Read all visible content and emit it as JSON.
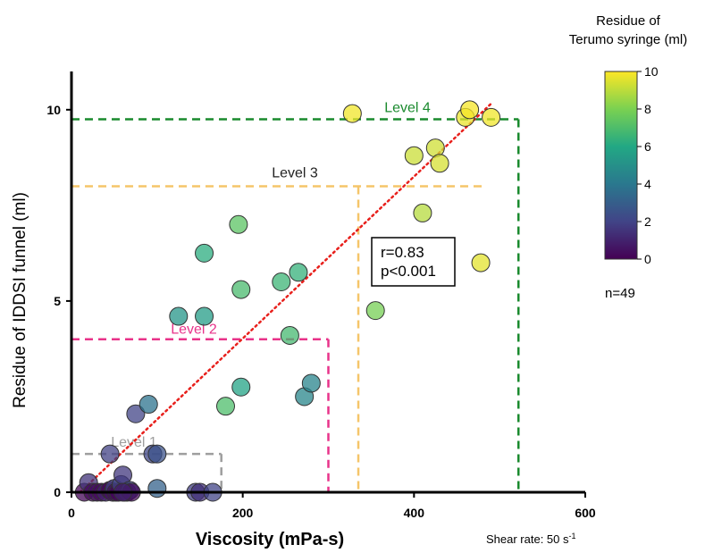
{
  "chart_data": {
    "type": "scatter",
    "xlabel": "Viscosity (mPa-s)",
    "ylabel": "Residue of IDDSI funnel (ml)",
    "xlim": [
      0,
      600
    ],
    "ylim": [
      0,
      11
    ],
    "xticks": [
      0,
      200,
      400,
      600
    ],
    "yticks": [
      0,
      5,
      10
    ],
    "shear_rate_note": "Shear rate: 50 s",
    "shear_rate_exp": "-1",
    "stats": {
      "r": "r=0.83",
      "p": "p<0.001"
    },
    "n_label": "n=49",
    "colorbar": {
      "title_line1": "Residue of",
      "title_line2": "Terumo syringe (ml)",
      "min": 0,
      "max": 10,
      "ticks": [
        0,
        2,
        4,
        6,
        8,
        10
      ]
    },
    "levels": [
      {
        "name": "Level 1",
        "x_max": 175,
        "y_max": 1,
        "color": "#9e9e9e"
      },
      {
        "name": "Level 2",
        "x_max": 300,
        "y_max": 4,
        "color": "#e8338a"
      },
      {
        "name": "Level 3",
        "x_max": 335,
        "y_max": 8,
        "color": "#f5c56a"
      },
      {
        "name": "Level 4",
        "x_max": 522,
        "y_max": 9.75,
        "color": "#1a8a2e"
      }
    ],
    "regression": {
      "x0": 10,
      "y0": 0,
      "x1": 492,
      "y1": 10.2,
      "color": "#e8201c"
    },
    "points": [
      {
        "x": 15,
        "y": 0.0,
        "c": 0.1
      },
      {
        "x": 20,
        "y": 0.25,
        "c": 1.5
      },
      {
        "x": 25,
        "y": 0.0,
        "c": 0.2
      },
      {
        "x": 30,
        "y": 0.0,
        "c": 0.5
      },
      {
        "x": 35,
        "y": 0.0,
        "c": 0.3
      },
      {
        "x": 40,
        "y": 0.0,
        "c": 1.0
      },
      {
        "x": 45,
        "y": 0.05,
        "c": 0.0
      },
      {
        "x": 48,
        "y": 0.0,
        "c": 0.6
      },
      {
        "x": 50,
        "y": 0.1,
        "c": 1.8
      },
      {
        "x": 52,
        "y": 0.0,
        "c": 0.4
      },
      {
        "x": 55,
        "y": 0.0,
        "c": 0.1
      },
      {
        "x": 58,
        "y": 0.2,
        "c": 2.0
      },
      {
        "x": 60,
        "y": 0.45,
        "c": 1.6
      },
      {
        "x": 62,
        "y": 0.0,
        "c": 0.8
      },
      {
        "x": 65,
        "y": 0.0,
        "c": 1.2
      },
      {
        "x": 68,
        "y": 0.05,
        "c": 2.2
      },
      {
        "x": 70,
        "y": 0.0,
        "c": 0.3
      },
      {
        "x": 45,
        "y": 1.0,
        "c": 1.9
      },
      {
        "x": 95,
        "y": 1.0,
        "c": 2.1
      },
      {
        "x": 100,
        "y": 1.0,
        "c": 2.5
      },
      {
        "x": 100,
        "y": 0.1,
        "c": 3.1
      },
      {
        "x": 145,
        "y": 0.0,
        "c": 1.8
      },
      {
        "x": 150,
        "y": 0.0,
        "c": 1.4
      },
      {
        "x": 165,
        "y": 0.0,
        "c": 2.0
      },
      {
        "x": 75,
        "y": 2.05,
        "c": 2.0
      },
      {
        "x": 90,
        "y": 2.3,
        "c": 3.8
      },
      {
        "x": 125,
        "y": 4.6,
        "c": 5.2
      },
      {
        "x": 155,
        "y": 4.6,
        "c": 5.5
      },
      {
        "x": 155,
        "y": 6.25,
        "c": 6.2
      },
      {
        "x": 180,
        "y": 2.25,
        "c": 7.0
      },
      {
        "x": 195,
        "y": 7.0,
        "c": 7.3
      },
      {
        "x": 198,
        "y": 5.3,
        "c": 6.9
      },
      {
        "x": 198,
        "y": 2.75,
        "c": 5.8
      },
      {
        "x": 245,
        "y": 5.5,
        "c": 6.6
      },
      {
        "x": 255,
        "y": 4.1,
        "c": 6.8
      },
      {
        "x": 265,
        "y": 5.75,
        "c": 6.4
      },
      {
        "x": 272,
        "y": 2.5,
        "c": 4.6
      },
      {
        "x": 280,
        "y": 2.85,
        "c": 4.5
      },
      {
        "x": 328,
        "y": 9.9,
        "c": 9.8
      },
      {
        "x": 355,
        "y": 4.75,
        "c": 7.9
      },
      {
        "x": 400,
        "y": 8.8,
        "c": 9.2
      },
      {
        "x": 410,
        "y": 7.3,
        "c": 8.9
      },
      {
        "x": 425,
        "y": 9.0,
        "c": 9.3
      },
      {
        "x": 430,
        "y": 8.6,
        "c": 9.4
      },
      {
        "x": 460,
        "y": 9.8,
        "c": 9.7
      },
      {
        "x": 465,
        "y": 10.0,
        "c": 9.9
      },
      {
        "x": 478,
        "y": 6.0,
        "c": 9.6
      },
      {
        "x": 490,
        "y": 9.8,
        "c": 9.8
      },
      {
        "x": 60,
        "y": 0.0,
        "c": 0.9
      }
    ]
  }
}
